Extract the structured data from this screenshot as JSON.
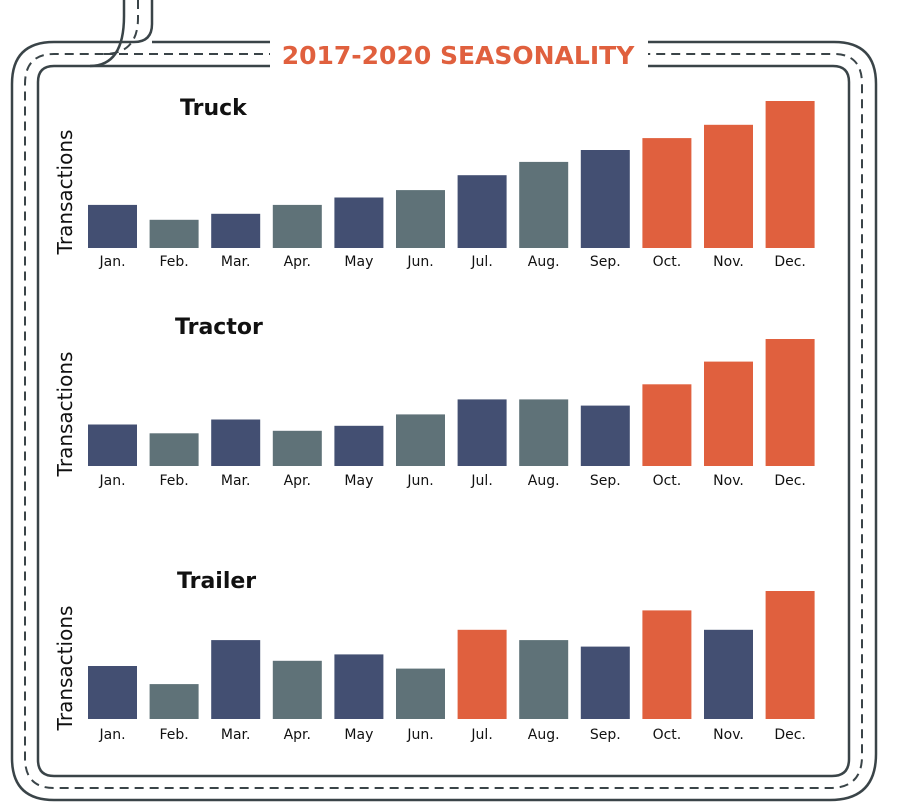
{
  "main_title": "2017-2020 SEASONALITY",
  "colors": {
    "navy": "#434F72",
    "slate": "#5F7278",
    "orange": "#E0603E",
    "frame": "#3A4448"
  },
  "chart_data": [
    {
      "type": "bar",
      "title": "Truck",
      "ylabel": "Transactions",
      "categories": [
        "Jan.",
        "Feb.",
        "Mar.",
        "Apr.",
        "May",
        "Jun.",
        "Jul.",
        "Aug.",
        "Sep.",
        "Oct.",
        "Nov.",
        "Dec."
      ],
      "values": [
        29,
        19,
        23,
        29,
        34,
        39,
        49,
        58,
        66,
        74,
        83,
        99
      ],
      "colors": [
        "navy",
        "slate",
        "navy",
        "slate",
        "navy",
        "slate",
        "navy",
        "slate",
        "navy",
        "orange",
        "orange",
        "orange"
      ]
    },
    {
      "type": "bar",
      "title": "Tractor",
      "ylabel": "Transactions",
      "categories": [
        "Jan.",
        "Feb.",
        "Mar.",
        "Apr.",
        "May",
        "Jun.",
        "Jul.",
        "Aug.",
        "Sep.",
        "Oct.",
        "Nov.",
        "Dec."
      ],
      "values": [
        33,
        26,
        37,
        28,
        32,
        41,
        53,
        53,
        48,
        65,
        83,
        101
      ],
      "colors": [
        "navy",
        "slate",
        "navy",
        "slate",
        "navy",
        "slate",
        "navy",
        "slate",
        "navy",
        "orange",
        "orange",
        "orange"
      ]
    },
    {
      "type": "bar",
      "title": "Trailer",
      "ylabel": "Transactions",
      "categories": [
        "Jan.",
        "Feb.",
        "Mar.",
        "Apr.",
        "May",
        "Jun.",
        "Jul.",
        "Aug.",
        "Sep.",
        "Oct.",
        "Nov.",
        "Dec."
      ],
      "values": [
        41,
        27,
        61,
        45,
        50,
        39,
        69,
        61,
        56,
        84,
        69,
        99
      ],
      "colors": [
        "navy",
        "slate",
        "navy",
        "slate",
        "navy",
        "slate",
        "orange",
        "slate",
        "navy",
        "orange",
        "navy",
        "orange"
      ]
    }
  ]
}
